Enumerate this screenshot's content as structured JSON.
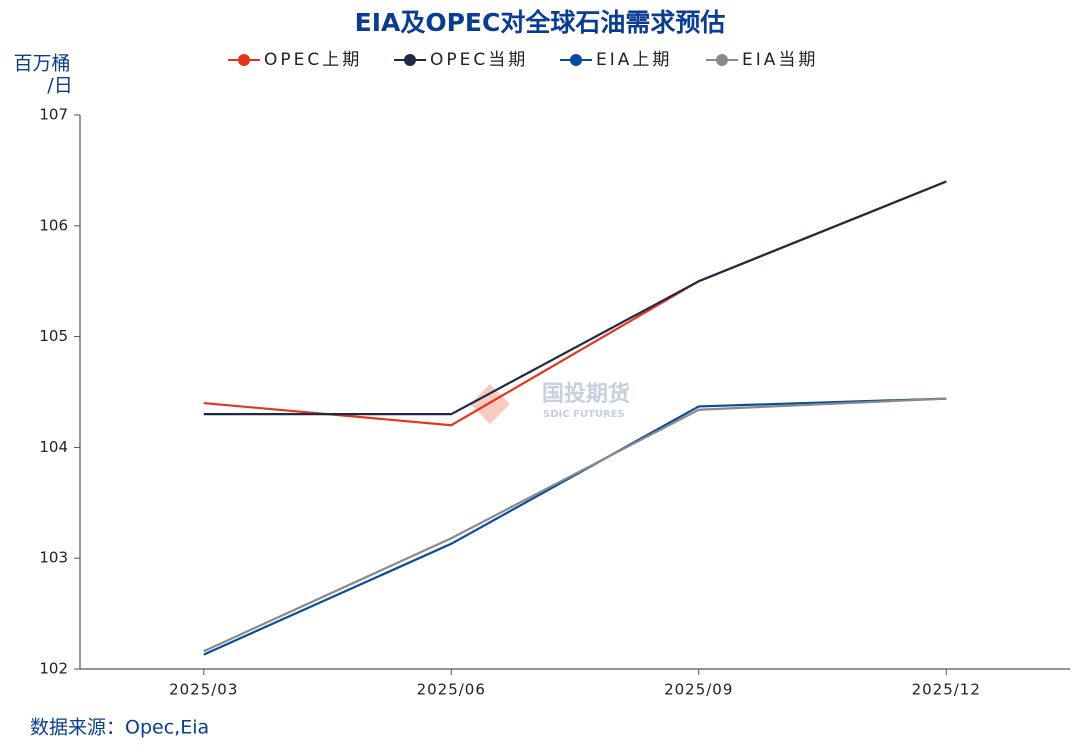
{
  "chart_data": {
    "type": "line",
    "title": "EIA及OPEC对全球石油需求预估",
    "y_label": [
      "百万桶",
      "/日"
    ],
    "source": "数据来源：Opec,Eia",
    "watermark": [
      "国投期货",
      "SDIC FUTURES"
    ],
    "categories": [
      "2025/03",
      "2025/06",
      "2025/09",
      "2025/12"
    ],
    "series": [
      {
        "name": "OPEC上期",
        "color": "#e8341c",
        "values": [
          104.4,
          104.2,
          105.5,
          106.4
        ]
      },
      {
        "name": "OPEC当期",
        "color": "#1f2a44",
        "values": [
          104.3,
          104.3,
          105.5,
          106.4
        ]
      },
      {
        "name": "EIA上期",
        "color": "#0a4a9f",
        "values": [
          102.13,
          103.13,
          104.37,
          104.44
        ]
      },
      {
        "name": "EIA当期",
        "color": "#8a8a8a",
        "values": [
          102.16,
          103.18,
          104.34,
          104.44
        ]
      }
    ],
    "ylim": [
      102,
      107
    ],
    "yticks": [
      102,
      103,
      104,
      105,
      106,
      107
    ]
  }
}
